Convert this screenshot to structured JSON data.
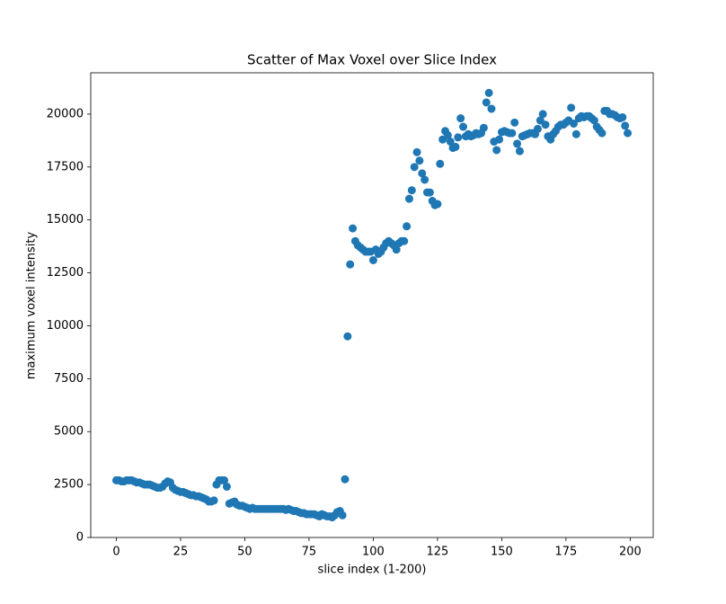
{
  "chart_data": {
    "type": "scatter",
    "title": "Scatter of Max Voxel over Slice Index",
    "x_label": "slice index (1-200)",
    "y_label": "maximum voxel intensity",
    "color": "#1f77b4",
    "x": [
      0,
      1,
      2,
      3,
      4,
      5,
      6,
      7,
      8,
      9,
      10,
      11,
      12,
      13,
      14,
      15,
      16,
      17,
      18,
      19,
      20,
      21,
      22,
      23,
      24,
      25,
      26,
      27,
      28,
      29,
      30,
      31,
      32,
      33,
      34,
      35,
      36,
      37,
      38,
      39,
      40,
      41,
      42,
      43,
      44,
      45,
      46,
      47,
      48,
      49,
      50,
      51,
      52,
      53,
      54,
      55,
      56,
      57,
      58,
      59,
      60,
      61,
      62,
      63,
      64,
      65,
      66,
      67,
      68,
      69,
      70,
      71,
      72,
      73,
      74,
      75,
      76,
      77,
      78,
      79,
      80,
      81,
      82,
      83,
      84,
      85,
      86,
      87,
      88,
      89,
      90,
      91,
      92,
      93,
      94,
      95,
      96,
      97,
      98,
      99,
      100,
      101,
      102,
      103,
      104,
      105,
      106,
      107,
      108,
      109,
      110,
      111,
      112,
      113,
      114,
      115,
      116,
      117,
      118,
      119,
      120,
      121,
      122,
      123,
      124,
      125,
      126,
      127,
      128,
      129,
      130,
      131,
      132,
      133,
      134,
      135,
      136,
      137,
      138,
      139,
      140,
      141,
      142,
      143,
      144,
      145,
      146,
      147,
      148,
      149,
      150,
      151,
      152,
      153,
      154,
      155,
      156,
      157,
      158,
      159,
      160,
      161,
      162,
      163,
      164,
      165,
      166,
      167,
      168,
      169,
      170,
      171,
      172,
      173,
      174,
      175,
      176,
      177,
      178,
      179,
      180,
      181,
      182,
      183,
      184,
      185,
      186,
      187,
      188,
      189,
      190,
      191,
      192,
      193,
      194,
      195,
      196,
      197,
      198,
      199
    ],
    "values": [
      2700,
      2700,
      2650,
      2650,
      2700,
      2700,
      2700,
      2650,
      2600,
      2600,
      2550,
      2500,
      2500,
      2500,
      2450,
      2400,
      2350,
      2350,
      2400,
      2550,
      2650,
      2600,
      2350,
      2250,
      2200,
      2150,
      2150,
      2100,
      2050,
      2000,
      2000,
      1950,
      1950,
      1900,
      1850,
      1800,
      1700,
      1700,
      1750,
      2500,
      2700,
      2700,
      2700,
      2400,
      1600,
      1650,
      1700,
      1550,
      1500,
      1500,
      1450,
      1400,
      1350,
      1400,
      1350,
      1350,
      1350,
      1350,
      1350,
      1350,
      1350,
      1350,
      1350,
      1350,
      1350,
      1350,
      1300,
      1350,
      1300,
      1250,
      1250,
      1200,
      1150,
      1150,
      1100,
      1100,
      1100,
      1100,
      1050,
      1000,
      1100,
      1050,
      1000,
      1000,
      950,
      1050,
      1200,
      1250,
      1050,
      2750,
      9500,
      12900,
      14600,
      14000,
      13800,
      13700,
      13600,
      13500,
      13500,
      13500,
      13100,
      13600,
      13400,
      13500,
      13700,
      13900,
      14000,
      13900,
      13800,
      13600,
      13900,
      14000,
      14000,
      14700,
      16000,
      16400,
      17500,
      18200,
      17800,
      17200,
      16900,
      16300,
      16300,
      15900,
      15700,
      15750,
      17650,
      18800,
      19200,
      19000,
      18700,
      18400,
      18450,
      18900,
      19800,
      19400,
      18950,
      19050,
      18950,
      19000,
      19100,
      19050,
      19100,
      19350,
      20550,
      21000,
      20250,
      18700,
      18300,
      18800,
      19150,
      19200,
      19150,
      19100,
      19100,
      19600,
      18600,
      18250,
      18950,
      19000,
      19050,
      19100,
      19100,
      19050,
      19300,
      19700,
      20000,
      19500,
      18950,
      18800,
      19050,
      19200,
      19400,
      19500,
      19500,
      19600,
      19700,
      20300,
      19550,
      19050,
      19800,
      19900,
      19850,
      19900,
      19900,
      19800,
      19700,
      19400,
      19250,
      19100,
      20150,
      20150,
      20000,
      20000,
      19950,
      19850,
      19800,
      19850,
      19450,
      19100
    ],
    "xlim": [
      -9.95,
      208.95
    ],
    "ylim": [
      0,
      21950
    ],
    "xticks": [
      0,
      25,
      50,
      75,
      100,
      125,
      150,
      175,
      200
    ],
    "yticks": [
      0,
      2500,
      5000,
      7500,
      10000,
      12500,
      15000,
      17500,
      20000
    ]
  }
}
